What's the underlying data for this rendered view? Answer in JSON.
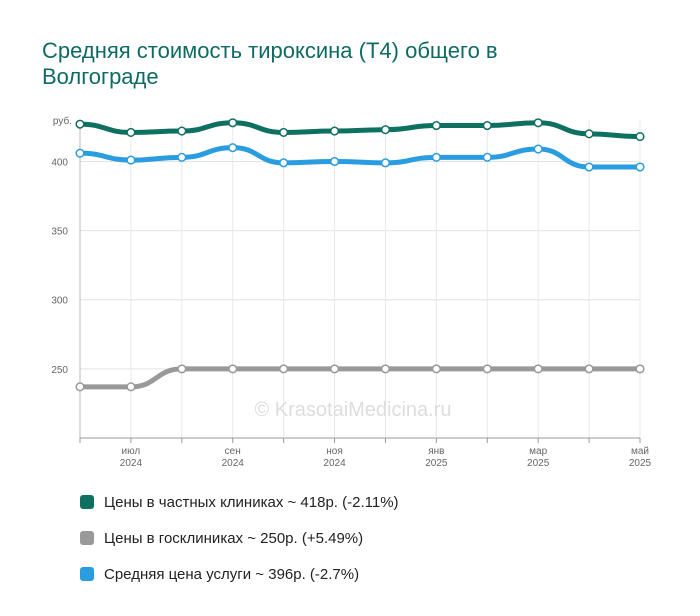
{
  "title": "Средняя стоимость тироксина (Т4) общего в Волгограде",
  "watermark": "© KrasotaiMedicina.ru",
  "chart_data": {
    "type": "line",
    "y_unit_label": "руб.",
    "ylim": [
      200,
      430
    ],
    "y_ticks": [
      250,
      300,
      350,
      400
    ],
    "x_points": 12,
    "x_labels": [
      {
        "index": 1,
        "line1": "июл",
        "line2": "2024"
      },
      {
        "index": 3,
        "line1": "сен",
        "line2": "2024"
      },
      {
        "index": 5,
        "line1": "ноя",
        "line2": "2024"
      },
      {
        "index": 7,
        "line1": "янв",
        "line2": "2025"
      },
      {
        "index": 9,
        "line1": "мар",
        "line2": "2025"
      },
      {
        "index": 11,
        "line1": "май",
        "line2": "2025"
      }
    ],
    "series": [
      {
        "name": "Цены в частных клиниках ~ 418р. (-2.11%)",
        "color": "#0e7060",
        "values": [
          427,
          421,
          422,
          428,
          421,
          422,
          423,
          426,
          426,
          428,
          420,
          418
        ]
      },
      {
        "name": "Цены в госклиниках ~ 250р. (+5.49%)",
        "color": "#999999",
        "values": [
          237,
          237,
          250,
          250,
          250,
          250,
          250,
          250,
          250,
          250,
          250,
          250
        ]
      },
      {
        "name": "Средняя цена услуги ~ 396р. (-2.7%)",
        "color": "#2a9de0",
        "values": [
          406,
          401,
          403,
          410,
          399,
          400,
          399,
          403,
          403,
          409,
          396,
          396
        ]
      }
    ],
    "grid": true,
    "legend_position": "bottom-left"
  }
}
